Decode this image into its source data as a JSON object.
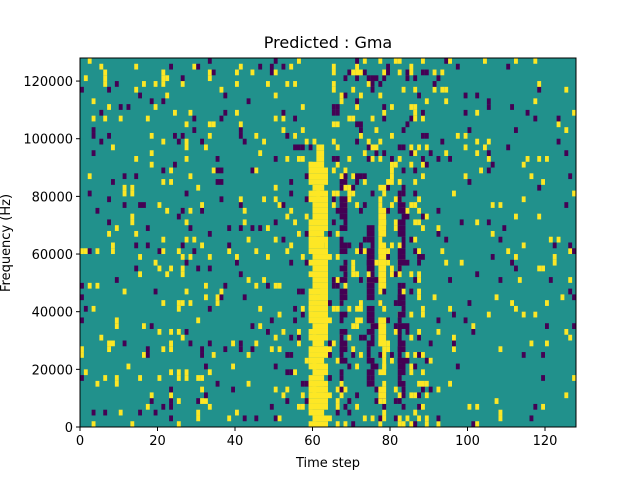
{
  "chart_data": {
    "type": "heatmap",
    "title": "Predicted : Gma",
    "xlabel": "Time step",
    "ylabel": "Frequency (Hz)",
    "xlim": [
      0,
      128
    ],
    "ylim": [
      0,
      128000
    ],
    "x_ticks": [
      "0",
      "20",
      "40",
      "60",
      "80",
      "100",
      "120"
    ],
    "x_tick_values": [
      0,
      20,
      40,
      60,
      80,
      100,
      120
    ],
    "y_ticks": [
      "0",
      "20000",
      "40000",
      "60000",
      "80000",
      "100000",
      "120000"
    ],
    "y_tick_values": [
      0,
      20000,
      40000,
      60000,
      80000,
      100000,
      120000
    ],
    "colormap": "viridis",
    "color_levels": {
      "low": "#440154",
      "mid": "#21918c",
      "high": "#fde725"
    },
    "background_level": "mid",
    "rows": 64,
    "row_height_hz": 2000,
    "column_width_steps": 1,
    "dense_bands": [
      {
        "level": "high",
        "x_start": 59,
        "x_end": 64,
        "y_start": 0,
        "y_end": 92000
      },
      {
        "level": "high",
        "x_start": 61,
        "x_end": 63,
        "y_start": 92000,
        "y_end": 98000
      },
      {
        "level": "low",
        "x_start": 67,
        "x_end": 69,
        "y_start": 22000,
        "y_end": 88000
      },
      {
        "level": "low",
        "x_start": 74,
        "x_end": 76,
        "y_start": 10000,
        "y_end": 70000
      },
      {
        "level": "high",
        "x_start": 77,
        "x_end": 79,
        "y_start": 10000,
        "y_end": 84000
      },
      {
        "level": "low",
        "x_start": 82,
        "x_end": 84,
        "y_start": 6000,
        "y_end": 84000
      }
    ]
  }
}
